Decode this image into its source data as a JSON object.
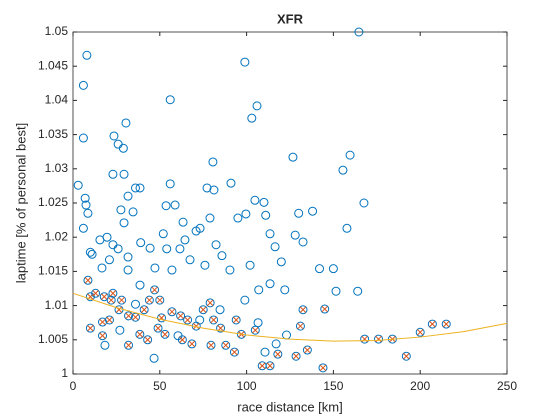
{
  "chart_data": {
    "type": "scatter",
    "title": "XFR",
    "xlabel": "race distance [km]",
    "ylabel": "laptime [% of personal best]",
    "xlim": [
      0,
      250
    ],
    "ylim": [
      1,
      1.05
    ],
    "xticks": [
      0,
      50,
      100,
      150,
      200,
      250
    ],
    "yticks": [
      1,
      1.005,
      1.01,
      1.015,
      1.02,
      1.025,
      1.03,
      1.035,
      1.04,
      1.045,
      1.05
    ],
    "grid": false,
    "series": [
      {
        "color": "#0072bd",
        "marker": "o",
        "x": [
          3,
          8,
          6,
          6,
          7,
          7.5,
          8.6,
          6,
          11,
          10,
          15.5,
          19.6,
          23.6,
          26,
          29,
          30.5,
          29.4,
          23,
          36,
          38.6,
          31.7,
          27.6,
          29.4,
          34.6,
          23,
          26,
          21,
          31.7,
          39,
          44.4,
          52,
          54,
          56,
          56,
          53.6,
          58.8,
          63.4,
          64.5,
          61.6,
          67.4,
          70.9,
          73.2,
          77.2,
          80.6,
          81.2,
          78.9,
          82.4,
          85.8,
          91,
          95,
          99,
          99.6,
          104.8,
          106,
          103,
          110,
          111,
          113.5,
          116.4,
          120,
          126.7,
          128,
          130,
          138,
          132.5,
          142,
          150,
          151.5,
          155.5,
          159.6,
          157.8,
          164,
          167.6,
          164.7,
          76,
          57,
          47.2,
          38.6,
          31.7,
          16.7,
          90.4,
          102,
          107,
          122,
          113.5,
          99,
          46.7,
          18.4,
          36,
          60.5,
          73,
          84.7,
          106.6,
          110.6,
          117,
          123,
          27
        ],
        "values": [
          1.0276,
          1.0466,
          1.0422,
          1.0345,
          1.0257,
          1.0247,
          1.0235,
          1.0213,
          1.0175,
          1.0178,
          1.0196,
          1.02,
          1.0348,
          1.0336,
          1.033,
          1.0367,
          1.0292,
          1.0292,
          1.0272,
          1.0272,
          1.026,
          1.024,
          1.0221,
          1.0237,
          1.0189,
          1.0183,
          1.0167,
          1.0171,
          1.0192,
          1.0184,
          1.0205,
          1.0183,
          1.0401,
          1.0278,
          1.0246,
          1.0247,
          1.0222,
          1.0196,
          1.0183,
          1.0167,
          1.0209,
          1.0213,
          1.0272,
          1.031,
          1.0269,
          1.0228,
          1.0189,
          1.0173,
          1.0279,
          1.0228,
          1.0456,
          1.0234,
          1.0254,
          1.0392,
          1.0374,
          1.0251,
          1.0232,
          1.0205,
          1.0186,
          1.0164,
          1.0317,
          1.0203,
          1.0235,
          1.0238,
          1.0193,
          1.0154,
          1.0154,
          1.0121,
          1.0298,
          1.032,
          1.0213,
          1.0121,
          1.025,
          1.05,
          1.0159,
          1.0152,
          1.0155,
          1.013,
          1.0152,
          1.0155,
          1.0152,
          1.0159,
          1.0123,
          1.0123,
          1.0132,
          1.0108,
          1.0023,
          1.0042,
          1.0102,
          1.0056,
          1.0079,
          1.0094,
          1.0075,
          1.0032,
          1.0044,
          1.0057,
          1.0064
        ]
      },
      {
        "color": "#d95319",
        "marker": "ox",
        "x": [
          8.6,
          10,
          13,
          18,
          22,
          23,
          26.5,
          10,
          17,
          21,
          32,
          36,
          28,
          41,
          44,
          47,
          50,
          51,
          53,
          49,
          43,
          57,
          62,
          66,
          63,
          68.5,
          71,
          75,
          79,
          81,
          85,
          88,
          93,
          97,
          94,
          105,
          109,
          113.5,
          118,
          128.5,
          131,
          132.5,
          145,
          135,
          144,
          168,
          176,
          184,
          192,
          200,
          207,
          215,
          17,
          32,
          38.5,
          79.5
        ],
        "values": [
          1.0137,
          1.0113,
          1.0118,
          1.0113,
          1.0108,
          1.0118,
          1.0094,
          1.0067,
          1.0076,
          1.0079,
          1.0085,
          1.0083,
          1.0108,
          1.0094,
          1.0108,
          1.0123,
          1.0108,
          1.0082,
          1.0058,
          1.0067,
          1.005,
          1.0091,
          1.0085,
          1.0079,
          1.005,
          1.0044,
          1.007,
          1.0094,
          1.0104,
          1.0079,
          1.0067,
          1.0042,
          1.0032,
          1.0058,
          1.0079,
          1.0064,
          1.0012,
          1.0012,
          1.0029,
          1.0026,
          1.007,
          1.0094,
          1.0095,
          1.0035,
          1.0009,
          1.0051,
          1.0051,
          1.0051,
          1.0026,
          1.0061,
          1.0073,
          1.0073,
          1.0056,
          1.0042,
          1.0058,
          1.0042
        ]
      },
      {
        "color": "#edb120",
        "marker": "-",
        "x": [
          0,
          25,
          50,
          75,
          100,
          125,
          150,
          175,
          200,
          225,
          250
        ],
        "values": [
          1.0118,
          1.0097,
          1.008,
          1.0067,
          1.0057,
          1.0051,
          1.0048,
          1.0049,
          1.0054,
          1.0062,
          1.0074
        ]
      }
    ]
  }
}
